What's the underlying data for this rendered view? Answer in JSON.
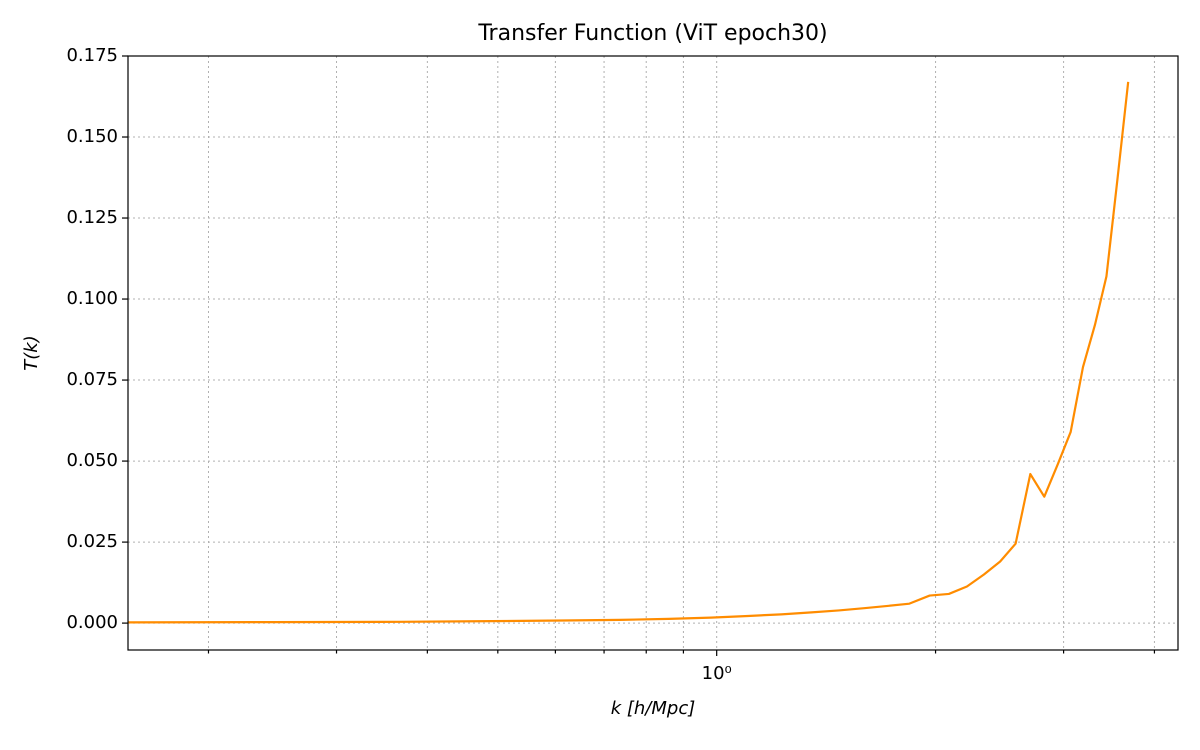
{
  "chart_data": {
    "type": "line",
    "title": "Transfer Function (ViT epoch30)",
    "xlabel": "k [h/Mpc]",
    "ylabel": "T(k)",
    "xscale": "log",
    "grid": true,
    "x": [
      0.123,
      0.245,
      0.368,
      0.491,
      0.614,
      0.736,
      0.859,
      0.982,
      1.104,
      1.227,
      1.35,
      1.472,
      1.595,
      1.718,
      1.841,
      1.963,
      2.086,
      2.209,
      2.331,
      2.454,
      2.577,
      2.7,
      2.822,
      2.945,
      3.068,
      3.19,
      3.313,
      3.436,
      3.558,
      3.681
    ],
    "series": [
      {
        "color": "#ff8c00",
        "values": [
          0.0002,
          0.0003,
          0.0004,
          0.0006,
          0.0008,
          0.001,
          0.0013,
          0.0017,
          0.0022,
          0.0027,
          0.0033,
          0.0039,
          0.0046,
          0.0053,
          0.006,
          0.0085,
          0.009,
          0.0113,
          0.015,
          0.019,
          0.0245,
          0.046,
          0.039,
          0.049,
          0.059,
          0.079,
          0.092,
          0.107,
          0.137,
          0.167
        ]
      }
    ],
    "xlim": [
      0.155,
      4.31
    ],
    "xticks": [
      {
        "value": 1,
        "label": "10⁰"
      }
    ],
    "xminor_ticks": [
      0.2,
      0.3,
      0.4,
      0.5,
      0.6,
      0.7,
      0.8,
      0.9,
      2,
      3,
      4
    ],
    "ylim": [
      -0.0083,
      0.175
    ],
    "yticks": [
      {
        "value": 0,
        "label": "0.000"
      },
      {
        "value": 0.025,
        "label": "0.025"
      },
      {
        "value": 0.05,
        "label": "0.050"
      },
      {
        "value": 0.075,
        "label": "0.075"
      },
      {
        "value": 0.1,
        "label": "0.100"
      },
      {
        "value": 0.125,
        "label": "0.125"
      },
      {
        "value": 0.15,
        "label": "0.150"
      },
      {
        "value": 0.175,
        "label": "0.175"
      }
    ]
  }
}
